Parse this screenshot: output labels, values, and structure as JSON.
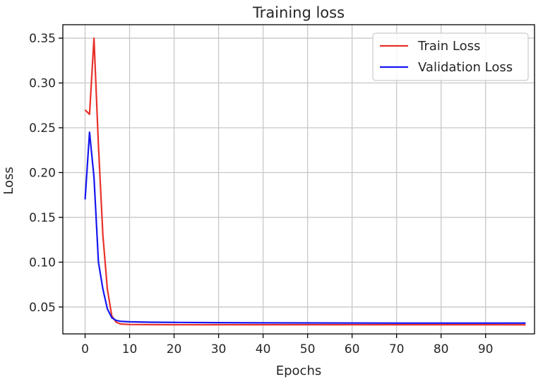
{
  "chart_data": {
    "type": "line",
    "title": "Training loss",
    "xlabel": "Epochs",
    "ylabel": "Loss",
    "xlim": [
      -5,
      101
    ],
    "ylim": [
      0.02,
      0.365
    ],
    "xticks": [
      0,
      10,
      20,
      30,
      40,
      50,
      60,
      70,
      80,
      90
    ],
    "yticks": [
      0.05,
      0.1,
      0.15,
      0.2,
      0.25,
      0.3,
      0.35
    ],
    "ytick_labels": [
      "0.05",
      "0.10",
      "0.15",
      "0.20",
      "0.25",
      "0.30",
      "0.35"
    ],
    "grid": true,
    "legend_position": "top-right",
    "series": [
      {
        "name": "Train Loss",
        "color": "#e8312a",
        "x": [
          0,
          1,
          2,
          3,
          4,
          5,
          6,
          7,
          8,
          10,
          15,
          20,
          30,
          40,
          50,
          60,
          70,
          80,
          90,
          99
        ],
        "values": [
          0.27,
          0.265,
          0.35,
          0.23,
          0.13,
          0.07,
          0.04,
          0.033,
          0.031,
          0.0305,
          0.0303,
          0.0302,
          0.0302,
          0.0302,
          0.0302,
          0.0302,
          0.0302,
          0.0302,
          0.0302,
          0.0301
        ]
      },
      {
        "name": "Validation Loss",
        "color": "#1616f0",
        "x": [
          0,
          1,
          2,
          3,
          4,
          5,
          6,
          7,
          8,
          10,
          15,
          20,
          30,
          40,
          50,
          60,
          70,
          80,
          90,
          99
        ],
        "values": [
          0.17,
          0.245,
          0.195,
          0.1,
          0.07,
          0.048,
          0.038,
          0.035,
          0.034,
          0.0335,
          0.033,
          0.0328,
          0.0325,
          0.0323,
          0.0322,
          0.0321,
          0.032,
          0.032,
          0.032,
          0.032
        ]
      }
    ]
  }
}
